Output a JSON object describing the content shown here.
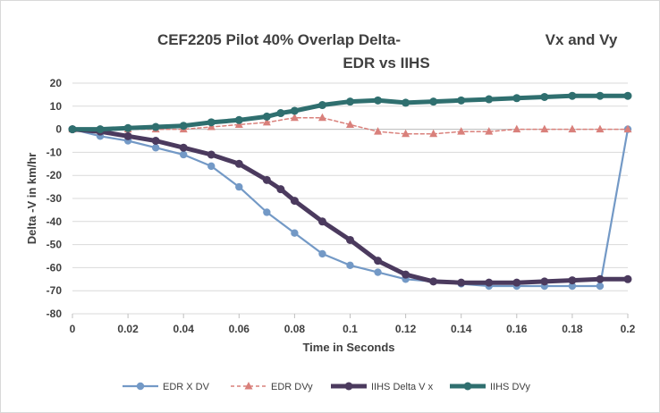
{
  "chart_data": {
    "type": "line",
    "title_lines": [
      "CEF2205 Pilot 40% Overlap Delta-",
      "EDR vs IIHS"
    ],
    "title_right": "Vx and Vy",
    "xlabel": "Time in Seconds",
    "ylabel": "Delta -V in km/hr",
    "xlim": [
      0,
      0.2
    ],
    "ylim": [
      -80,
      20
    ],
    "x_ticks": [
      "0",
      "0.02",
      "0.04",
      "0.06",
      "0.08",
      "0.1",
      "0.12",
      "0.14",
      "0.16",
      "0.18",
      "0.2"
    ],
    "y_ticks": [
      "20",
      "10",
      "0",
      "-10",
      "-20",
      "-30",
      "-40",
      "-50",
      "-60",
      "-70",
      "-80"
    ],
    "grid": true,
    "legend_position": "bottom",
    "series": [
      {
        "name": "EDR X DV",
        "color": "#7399c6",
        "marker": "circle",
        "x": [
          0,
          0.01,
          0.02,
          0.03,
          0.04,
          0.05,
          0.06,
          0.07,
          0.08,
          0.09,
          0.1,
          0.11,
          0.12,
          0.13,
          0.14,
          0.15,
          0.16,
          0.17,
          0.18,
          0.19,
          0.2
        ],
        "y": [
          0,
          -3,
          -5,
          -8,
          -11,
          -16,
          -25,
          -36,
          -45,
          -54,
          -59,
          -62,
          -65,
          -66,
          -67,
          -68,
          -68,
          -68,
          -68,
          -68,
          0
        ]
      },
      {
        "name": "EDR DVy",
        "color": "#d9807b",
        "marker": "triangle",
        "x": [
          0,
          0.01,
          0.02,
          0.03,
          0.04,
          0.05,
          0.06,
          0.07,
          0.08,
          0.09,
          0.1,
          0.11,
          0.12,
          0.13,
          0.14,
          0.15,
          0.16,
          0.17,
          0.18,
          0.19,
          0.2
        ],
        "y": [
          0,
          0,
          0,
          0,
          0,
          1,
          2,
          3,
          5,
          5,
          2,
          -1,
          -2,
          -2,
          -1,
          -1,
          0,
          0,
          0,
          0,
          0
        ]
      },
      {
        "name": "IIHS Delta V x",
        "color": "#4b3a5e",
        "marker": "circle",
        "x": [
          0,
          0.01,
          0.02,
          0.03,
          0.04,
          0.05,
          0.06,
          0.07,
          0.075,
          0.08,
          0.09,
          0.1,
          0.11,
          0.12,
          0.13,
          0.14,
          0.15,
          0.16,
          0.17,
          0.18,
          0.19,
          0.2
        ],
        "y": [
          0,
          -1,
          -3,
          -5,
          -8,
          -11,
          -15,
          -22,
          -26,
          -31,
          -40,
          -48,
          -57,
          -63,
          -66,
          -66.5,
          -66.5,
          -66.5,
          -66,
          -65.5,
          -65,
          -65
        ]
      },
      {
        "name": "IIHS DVy",
        "color": "#2f6f6f",
        "marker": "circle",
        "x": [
          0,
          0.01,
          0.02,
          0.03,
          0.04,
          0.05,
          0.06,
          0.07,
          0.075,
          0.08,
          0.09,
          0.1,
          0.11,
          0.12,
          0.13,
          0.14,
          0.15,
          0.16,
          0.17,
          0.18,
          0.19,
          0.2
        ],
        "y": [
          0,
          0,
          0.5,
          1,
          1.5,
          3,
          4,
          5.5,
          7,
          8,
          10.5,
          12,
          12.5,
          11.5,
          12,
          12.5,
          13,
          13.5,
          14,
          14.5,
          14.5,
          14.5
        ]
      }
    ]
  }
}
